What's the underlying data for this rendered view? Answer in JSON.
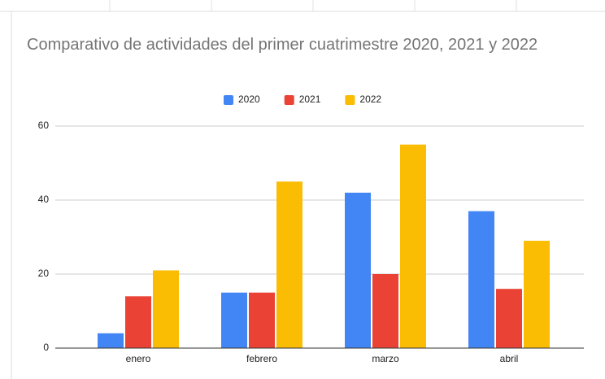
{
  "chart_data": {
    "type": "bar",
    "title": "Comparativo de actividades del primer cuatrimestre 2020, 2021 y 2022",
    "categories": [
      "enero",
      "febrero",
      "marzo",
      "abril"
    ],
    "series": [
      {
        "name": "2020",
        "color": "#4285f4",
        "values": [
          4,
          15,
          42,
          37
        ]
      },
      {
        "name": "2021",
        "color": "#ea4335",
        "values": [
          14,
          15,
          20,
          16
        ]
      },
      {
        "name": "2022",
        "color": "#fbbc04",
        "values": [
          21,
          45,
          55,
          29
        ]
      }
    ],
    "ylim": [
      0,
      60
    ],
    "yticks": [
      0,
      20,
      40,
      60
    ],
    "grid": true,
    "legend": "top"
  }
}
